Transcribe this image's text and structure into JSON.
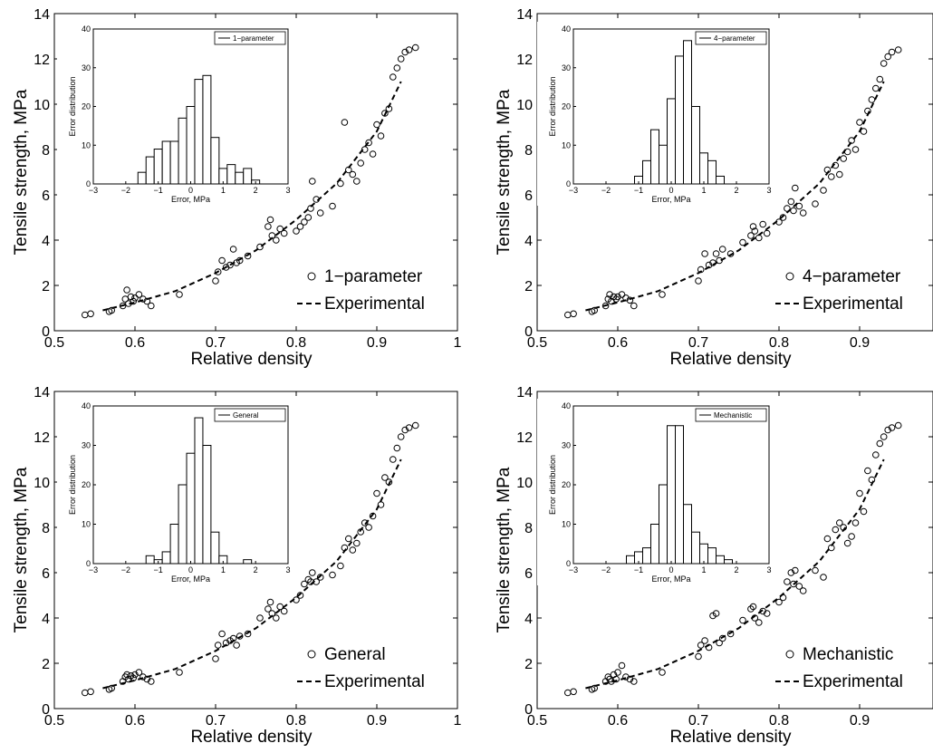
{
  "chart_data": [
    {
      "type": "scatter",
      "xlabel": "Relative density",
      "ylabel": "Tensile strength, MPa",
      "xlim": [
        0.5,
        1
      ],
      "ylim": [
        0,
        14
      ],
      "xticks": [
        "0.5",
        "0.6",
        "0.7",
        "0.8",
        "0.9",
        "1"
      ],
      "yticks": [
        "0",
        "2",
        "4",
        "6",
        "8",
        "10",
        "12",
        "14"
      ],
      "grid": false,
      "legend_position": "bottom-right",
      "series": [
        {
          "name": "1−parameter",
          "marker": "circle",
          "x": [
            0.538,
            0.545,
            0.568,
            0.571,
            0.585,
            0.588,
            0.59,
            0.592,
            0.595,
            0.598,
            0.6,
            0.605,
            0.61,
            0.615,
            0.62,
            0.655,
            0.7,
            0.703,
            0.708,
            0.713,
            0.718,
            0.722,
            0.726,
            0.73,
            0.74,
            0.755,
            0.765,
            0.768,
            0.77,
            0.775,
            0.78,
            0.785,
            0.8,
            0.805,
            0.81,
            0.815,
            0.818,
            0.82,
            0.825,
            0.83,
            0.845,
            0.855,
            0.86,
            0.865,
            0.87,
            0.875,
            0.88,
            0.885,
            0.89,
            0.895,
            0.9,
            0.905,
            0.91,
            0.915,
            0.92,
            0.925,
            0.93,
            0.935,
            0.94,
            0.948
          ],
          "y": [
            0.7,
            0.75,
            0.85,
            0.9,
            1.1,
            1.4,
            1.8,
            1.2,
            1.5,
            1.3,
            1.45,
            1.6,
            1.4,
            1.3,
            1.1,
            1.6,
            2.2,
            2.6,
            3.1,
            2.8,
            2.9,
            3.6,
            3.0,
            3.1,
            3.3,
            3.7,
            4.6,
            4.9,
            4.2,
            4.0,
            4.5,
            4.3,
            4.4,
            4.6,
            4.8,
            5.0,
            5.4,
            6.6,
            5.8,
            5.2,
            5.5,
            6.5,
            9.2,
            7.1,
            6.9,
            6.6,
            7.4,
            8.0,
            8.3,
            7.8,
            9.1,
            8.6,
            9.6,
            9.8,
            11.2,
            11.6,
            12.0,
            12.3,
            12.4,
            12.5
          ]
        },
        {
          "name": "Experimental",
          "line": "dashed",
          "x": [
            0.56,
            0.6,
            0.65,
            0.7,
            0.75,
            0.8,
            0.85,
            0.9,
            0.93
          ],
          "y": [
            0.9,
            1.25,
            1.75,
            2.55,
            3.55,
            4.9,
            6.5,
            8.8,
            11.0
          ]
        }
      ],
      "inset": {
        "type": "bar",
        "xlabel": "Error, MPa",
        "ylabel": "Error distribution",
        "xlim": [
          -3,
          3
        ],
        "ylim": [
          0,
          40
        ],
        "xticks": [
          "−3",
          "−2",
          "−1",
          "0",
          "1",
          "2",
          "3"
        ],
        "yticks": [
          "0",
          "10",
          "20",
          "30",
          "40"
        ],
        "legend": "1−parameter",
        "bin_centers": [
          -1.5,
          -1.25,
          -1.0,
          -0.75,
          -0.5,
          -0.25,
          0.0,
          0.25,
          0.5,
          0.75,
          1.0,
          1.25,
          1.5,
          1.75,
          2.0
        ],
        "counts": [
          3,
          7,
          9,
          11,
          11,
          17,
          20,
          27,
          28,
          12,
          4,
          5,
          3,
          4,
          1
        ]
      }
    },
    {
      "type": "scatter",
      "xlabel": "Relative density",
      "ylabel": "Tensile strength, MPa",
      "xlim": [
        0.5,
        1
      ],
      "ylim": [
        0,
        14
      ],
      "xticks": [
        "0.5",
        "0.6",
        "0.7",
        "0.8",
        "0.9"
      ],
      "yticks": [
        "0",
        "2",
        "4",
        "6",
        "8",
        "10",
        "12",
        "14"
      ],
      "grid": false,
      "legend_position": "bottom-right",
      "series": [
        {
          "name": "4−parameter",
          "marker": "circle",
          "x": [
            0.538,
            0.545,
            0.568,
            0.571,
            0.585,
            0.588,
            0.59,
            0.592,
            0.595,
            0.598,
            0.6,
            0.605,
            0.61,
            0.615,
            0.62,
            0.655,
            0.7,
            0.703,
            0.708,
            0.713,
            0.718,
            0.722,
            0.726,
            0.73,
            0.74,
            0.755,
            0.765,
            0.768,
            0.77,
            0.775,
            0.78,
            0.785,
            0.8,
            0.805,
            0.81,
            0.815,
            0.818,
            0.82,
            0.825,
            0.83,
            0.845,
            0.855,
            0.86,
            0.865,
            0.87,
            0.875,
            0.88,
            0.885,
            0.89,
            0.895,
            0.9,
            0.905,
            0.91,
            0.915,
            0.92,
            0.925,
            0.93,
            0.935,
            0.94,
            0.948
          ],
          "y": [
            0.7,
            0.75,
            0.85,
            0.9,
            1.1,
            1.4,
            1.6,
            1.3,
            1.5,
            1.4,
            1.5,
            1.6,
            1.45,
            1.35,
            1.1,
            1.6,
            2.2,
            2.7,
            3.4,
            2.9,
            3.0,
            3.4,
            3.1,
            3.6,
            3.4,
            3.9,
            4.2,
            4.6,
            4.4,
            4.1,
            4.7,
            4.3,
            4.8,
            5.0,
            5.4,
            5.7,
            5.3,
            6.3,
            5.5,
            5.2,
            5.6,
            6.2,
            7.1,
            6.8,
            7.3,
            6.9,
            7.6,
            7.9,
            8.4,
            8.0,
            9.2,
            8.8,
            9.7,
            10.2,
            10.7,
            11.1,
            11.8,
            12.1,
            12.3,
            12.4
          ]
        },
        {
          "name": "Experimental",
          "line": "dashed",
          "x": [
            0.56,
            0.6,
            0.65,
            0.7,
            0.75,
            0.8,
            0.85,
            0.9,
            0.93
          ],
          "y": [
            0.9,
            1.25,
            1.75,
            2.55,
            3.55,
            4.9,
            6.5,
            8.8,
            11.0
          ]
        }
      ],
      "inset": {
        "type": "bar",
        "xlabel": "Error, MPa",
        "ylabel": "Error distribution",
        "xlim": [
          -3,
          3
        ],
        "ylim": [
          0,
          40
        ],
        "xticks": [
          "−3",
          "−2",
          "−1",
          "0",
          "1",
          "2",
          "3"
        ],
        "yticks": [
          "0",
          "10",
          "20",
          "30",
          "40"
        ],
        "legend": "4−parameter",
        "bin_centers": [
          -1.0,
          -0.75,
          -0.5,
          -0.25,
          0.0,
          0.25,
          0.5,
          0.75,
          1.0,
          1.25,
          1.5
        ],
        "counts": [
          2,
          6,
          14,
          10,
          22,
          33,
          37,
          20,
          8,
          6,
          2
        ]
      }
    },
    {
      "type": "scatter",
      "xlabel": "Relative density",
      "ylabel": "Tensile strength, MPa",
      "xlim": [
        0.5,
        1
      ],
      "ylim": [
        0,
        14
      ],
      "xticks": [
        "0.5",
        "0.6",
        "0.7",
        "0.8",
        "0.9",
        "1"
      ],
      "yticks": [
        "0",
        "2",
        "4",
        "6",
        "8",
        "10",
        "12",
        "14"
      ],
      "grid": false,
      "legend_position": "bottom-right",
      "series": [
        {
          "name": "General",
          "marker": "circle",
          "x": [
            0.538,
            0.545,
            0.568,
            0.571,
            0.585,
            0.588,
            0.59,
            0.592,
            0.595,
            0.598,
            0.6,
            0.605,
            0.61,
            0.615,
            0.62,
            0.655,
            0.7,
            0.703,
            0.708,
            0.713,
            0.718,
            0.722,
            0.726,
            0.73,
            0.74,
            0.755,
            0.765,
            0.768,
            0.77,
            0.775,
            0.78,
            0.785,
            0.8,
            0.805,
            0.81,
            0.815,
            0.818,
            0.82,
            0.825,
            0.83,
            0.845,
            0.855,
            0.86,
            0.865,
            0.87,
            0.875,
            0.88,
            0.885,
            0.89,
            0.895,
            0.9,
            0.905,
            0.91,
            0.915,
            0.92,
            0.925,
            0.93,
            0.935,
            0.94,
            0.948
          ],
          "y": [
            0.7,
            0.75,
            0.85,
            0.9,
            1.2,
            1.4,
            1.5,
            1.3,
            1.45,
            1.35,
            1.5,
            1.6,
            1.4,
            1.3,
            1.2,
            1.6,
            2.2,
            2.8,
            3.3,
            2.9,
            3.0,
            3.1,
            2.8,
            3.2,
            3.3,
            4.0,
            4.4,
            4.7,
            4.2,
            4.0,
            4.5,
            4.3,
            4.8,
            5.0,
            5.5,
            5.7,
            5.6,
            6.0,
            5.6,
            5.8,
            5.9,
            6.3,
            7.1,
            7.5,
            7.0,
            7.3,
            7.8,
            8.2,
            8.0,
            8.5,
            9.5,
            9.0,
            10.2,
            10.0,
            11.0,
            11.5,
            12.0,
            12.3,
            12.4,
            12.5
          ]
        },
        {
          "name": "Experimental",
          "line": "dashed",
          "x": [
            0.56,
            0.6,
            0.65,
            0.7,
            0.75,
            0.8,
            0.85,
            0.9,
            0.93
          ],
          "y": [
            0.9,
            1.25,
            1.75,
            2.55,
            3.55,
            4.9,
            6.5,
            8.8,
            11.0
          ]
        }
      ],
      "inset": {
        "type": "bar",
        "xlabel": "Error, MPa",
        "ylabel": "Error distribution",
        "xlim": [
          -3,
          3
        ],
        "ylim": [
          0,
          40
        ],
        "xticks": [
          "−3",
          "−2",
          "−1",
          "0",
          "1",
          "2",
          "3"
        ],
        "yticks": [
          "0",
          "10",
          "20",
          "30",
          "40"
        ],
        "legend": "General",
        "bin_centers": [
          -1.25,
          -1.0,
          -0.75,
          -0.5,
          -0.25,
          0.0,
          0.25,
          0.5,
          0.75,
          1.0,
          1.75
        ],
        "counts": [
          2,
          1,
          3,
          10,
          20,
          28,
          37,
          30,
          8,
          2,
          1
        ]
      }
    },
    {
      "type": "scatter",
      "xlabel": "Relative density",
      "ylabel": "Tensile strength, MPa",
      "xlim": [
        0.5,
        1
      ],
      "ylim": [
        0,
        14
      ],
      "xticks": [
        "0.5",
        "0.6",
        "0.7",
        "0.8",
        "0.9"
      ],
      "yticks": [
        "0",
        "2",
        "4",
        "6",
        "8",
        "10",
        "12",
        "14"
      ],
      "grid": false,
      "legend_position": "bottom-right",
      "series": [
        {
          "name": "Mechanistic",
          "marker": "circle",
          "x": [
            0.538,
            0.545,
            0.568,
            0.571,
            0.585,
            0.588,
            0.59,
            0.592,
            0.595,
            0.598,
            0.6,
            0.605,
            0.61,
            0.615,
            0.62,
            0.655,
            0.7,
            0.703,
            0.708,
            0.713,
            0.718,
            0.722,
            0.726,
            0.73,
            0.74,
            0.755,
            0.765,
            0.768,
            0.77,
            0.775,
            0.78,
            0.785,
            0.8,
            0.805,
            0.81,
            0.815,
            0.818,
            0.82,
            0.825,
            0.83,
            0.845,
            0.855,
            0.86,
            0.865,
            0.87,
            0.875,
            0.88,
            0.885,
            0.89,
            0.895,
            0.9,
            0.905,
            0.91,
            0.915,
            0.92,
            0.925,
            0.93,
            0.935,
            0.94,
            0.948
          ],
          "y": [
            0.7,
            0.75,
            0.85,
            0.9,
            1.2,
            1.4,
            1.3,
            1.2,
            1.5,
            1.3,
            1.6,
            1.9,
            1.4,
            1.3,
            1.2,
            1.6,
            2.3,
            2.8,
            3.0,
            2.7,
            4.1,
            4.2,
            2.9,
            3.1,
            3.3,
            3.9,
            4.4,
            4.5,
            4.0,
            3.8,
            4.3,
            4.2,
            4.7,
            4.9,
            5.6,
            6.0,
            5.5,
            6.1,
            5.4,
            5.2,
            6.1,
            5.8,
            7.5,
            7.1,
            7.9,
            8.2,
            8.0,
            7.3,
            7.6,
            8.2,
            9.5,
            8.7,
            10.5,
            10.1,
            11.2,
            11.7,
            12.0,
            12.3,
            12.4,
            12.5
          ]
        },
        {
          "name": "Experimental",
          "line": "dashed",
          "x": [
            0.56,
            0.6,
            0.65,
            0.7,
            0.75,
            0.8,
            0.85,
            0.9,
            0.93
          ],
          "y": [
            0.9,
            1.25,
            1.75,
            2.55,
            3.55,
            4.9,
            6.5,
            8.8,
            11.0
          ]
        }
      ],
      "inset": {
        "type": "bar",
        "xlabel": "Error, MPa",
        "ylabel": "Error distribution",
        "xlim": [
          -3,
          3
        ],
        "ylim": [
          0,
          40
        ],
        "xticks": [
          "−3",
          "−2",
          "−1",
          "0",
          "1",
          "2",
          "3"
        ],
        "yticks": [
          "0",
          "10",
          "20",
          "30",
          "40"
        ],
        "legend": "Mechanistic",
        "bin_centers": [
          -1.25,
          -1.0,
          -0.75,
          -0.5,
          -0.25,
          0.0,
          0.25,
          0.5,
          0.75,
          1.0,
          1.25,
          1.5,
          1.75
        ],
        "counts": [
          2,
          3,
          4,
          10,
          20,
          35,
          35,
          15,
          8,
          5,
          4,
          2,
          1
        ]
      }
    }
  ]
}
